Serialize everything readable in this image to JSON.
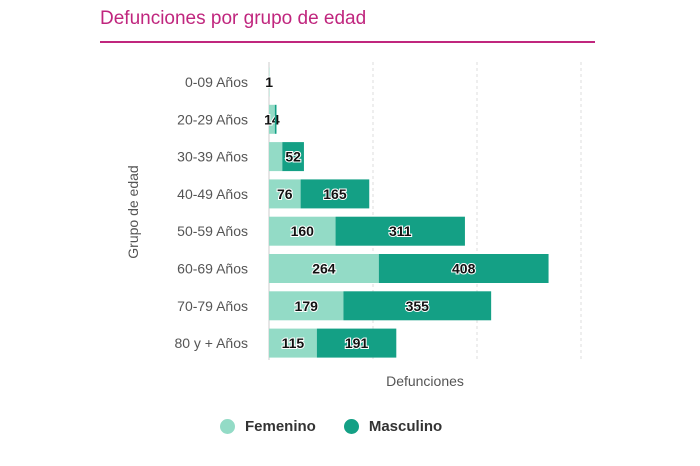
{
  "title": "Defunciones por grupo de edad",
  "chart_data": {
    "type": "bar",
    "orientation": "horizontal",
    "stacked": true,
    "title": "Defunciones por grupo de edad",
    "xlabel": "Defunciones",
    "ylabel": "Grupo de edad",
    "xlim": [
      0,
      750
    ],
    "grid": true,
    "legend_position": "bottom",
    "categories": [
      "0-09 Años",
      "20-29 Años",
      "30-39 Años",
      "40-49 Años",
      "50-59 Años",
      "60-69 Años",
      "70-79 Años",
      "80 y + Años"
    ],
    "series": [
      {
        "name": "Femenino",
        "color": "#93dbc6",
        "values": [
          1,
          14,
          32,
          76,
          160,
          264,
          179,
          115
        ],
        "labels": [
          "1",
          "14",
          "",
          "76",
          "160",
          "264",
          "179",
          "115"
        ]
      },
      {
        "name": "Masculino",
        "color": "#14a085",
        "values": [
          0,
          4,
          52,
          165,
          311,
          408,
          355,
          191
        ],
        "labels": [
          "",
          "",
          "52",
          "165",
          "311",
          "408",
          "355",
          "191"
        ]
      }
    ]
  }
}
